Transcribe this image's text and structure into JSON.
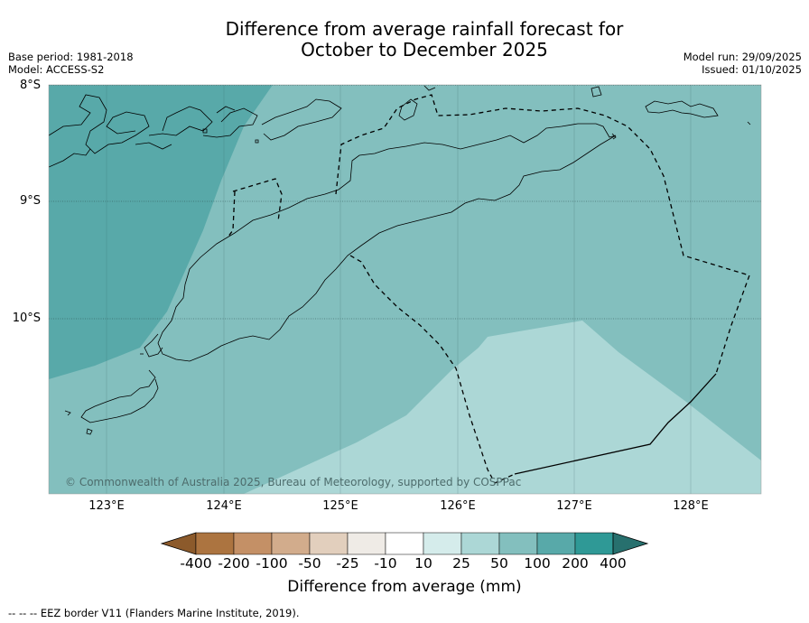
{
  "title": {
    "line1": "Difference from average rainfall forecast for",
    "line2": "October to December 2025"
  },
  "meta": {
    "base_period": "Base period: 1981-2018",
    "model": "Model: ACCESS-S2",
    "model_run": "Model run: 29/09/2025",
    "issued": "Issued: 01/10/2025"
  },
  "axes": {
    "lat_labels": [
      "8°S",
      "9°S",
      "10°S"
    ],
    "lon_labels": [
      "123°E",
      "124°E",
      "125°E",
      "126°E",
      "127°E",
      "128°E"
    ]
  },
  "copyright": "© Commonwealth of Australia 2025, Bureau of Meteorology, supported by COSPPac",
  "colorbar": {
    "title": "Difference from average (mm)",
    "labels": [
      "-400",
      "-200",
      "-100",
      "-50",
      "-25",
      "-10",
      "10",
      "25",
      "50",
      "100",
      "200",
      "400"
    ],
    "colors": [
      "#8c5a2b",
      "#ac7440",
      "#c49066",
      "#d2ac8c",
      "#e2cfbd",
      "#efebe6",
      "#ffffff",
      "#d5eceb",
      "#acd7d6",
      "#83bfbe",
      "#58a9a9",
      "#2f9996",
      "#27706e"
    ]
  },
  "footnote": "--  --  -- EEZ border V11 (Flanders Marine Institute, 2019).",
  "legend_colors": {
    "band_25_50": "#acd7d6",
    "band_50_100": "#83bfbe",
    "band_100_200": "#58a9a9"
  }
}
